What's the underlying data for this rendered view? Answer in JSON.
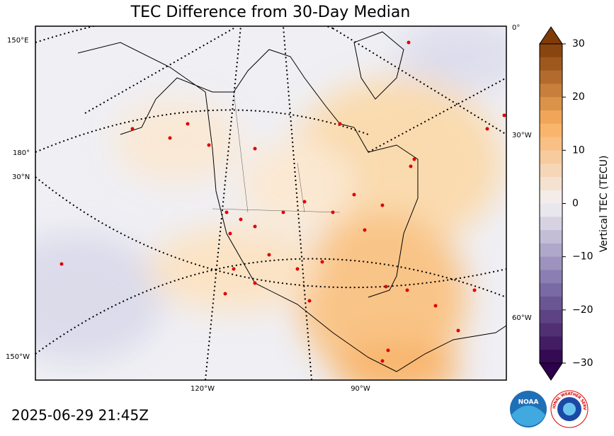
{
  "title": "TEC Difference from 30-Day Median",
  "timestamp": "2025-06-29 21:45Z",
  "colorbar": {
    "label": "Vertical TEC (TECU)",
    "lim": [
      -30,
      30
    ],
    "ticks": [
      {
        "value": -30,
        "label": "−30"
      },
      {
        "value": -20,
        "label": "−20"
      },
      {
        "value": -10,
        "label": "−10"
      },
      0,
      10,
      20,
      30
    ]
  },
  "graticule_labels": {
    "left": [
      "150°E",
      "180°",
      "30°N",
      "150°W"
    ],
    "right": [
      "0°",
      "30°W",
      "60°W"
    ],
    "bottom": [
      "120°W",
      "90°W"
    ]
  },
  "logos": {
    "noaa": "NOAA",
    "nws": "NATIONAL WEATHER SERVICE"
  }
}
